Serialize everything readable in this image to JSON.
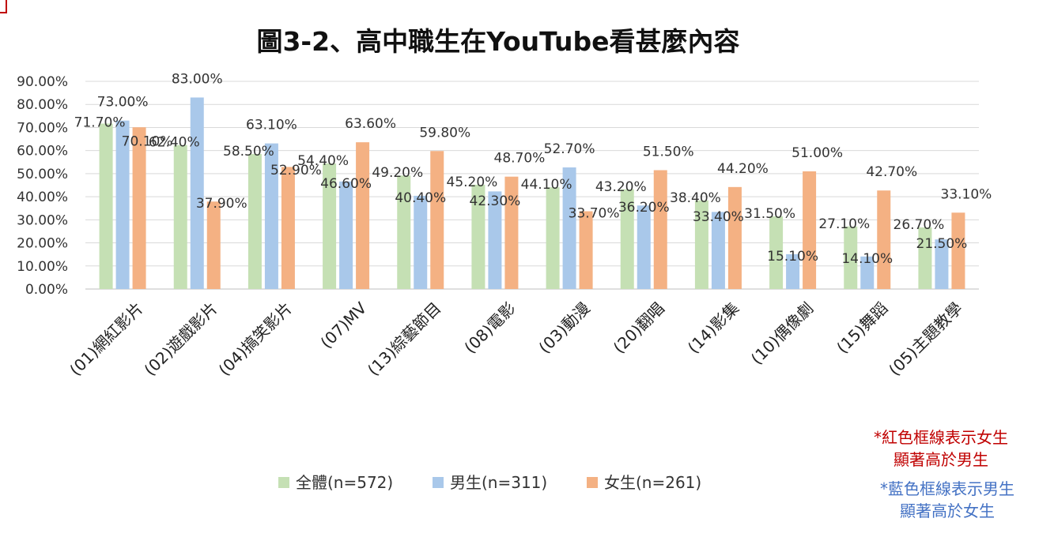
{
  "chart_data": {
    "type": "bar",
    "title": "圖3-2、高中職生在YouTube看甚麼內容",
    "categories": [
      "(01)網紅影片",
      "(02)遊戲影片",
      "(04)搞笑影片",
      "(07)MV",
      "(13)綜藝節目",
      "(08)電影",
      "(03)動漫",
      "(20)翻唱",
      "(14)影集",
      "(10)偶像劇",
      "(15)舞蹈",
      "(05)主題教學"
    ],
    "category_frames": [
      "none",
      "blue",
      "blue",
      "red",
      "red",
      "none",
      "blue",
      "red",
      "red",
      "red",
      "red",
      "red"
    ],
    "series": [
      {
        "name": "全體(n=572)",
        "color": "#c5e0b4",
        "values": [
          71.7,
          62.4,
          58.5,
          54.4,
          49.2,
          45.2,
          44.1,
          43.2,
          38.4,
          31.5,
          27.1,
          26.7
        ],
        "labels": [
          "71.70%",
          "62.40%",
          "58.50%",
          "54.40%",
          "49.20%",
          "45.20%",
          "44.10%",
          "43.20%",
          "38.40%",
          "31.50%",
          "27.10%",
          "26.70%"
        ]
      },
      {
        "name": "男生(n=311)",
        "color": "#a9c8ea",
        "values": [
          73.0,
          83.0,
          63.1,
          46.6,
          40.4,
          42.3,
          52.7,
          36.2,
          33.4,
          15.1,
          14.1,
          21.5
        ],
        "labels": [
          "73.00%",
          "83.00%",
          "63.10%",
          "46.60%",
          "40.40%",
          "42.30%",
          "52.70%",
          "36.20%",
          "33.40%",
          "15.10%",
          "14.10%",
          "21.50%"
        ]
      },
      {
        "name": "女生(n=261)",
        "color": "#f4b183",
        "values": [
          70.1,
          37.9,
          52.9,
          63.6,
          59.8,
          48.7,
          33.7,
          51.5,
          44.2,
          51.0,
          42.7,
          33.1
        ],
        "labels": [
          "70.10%",
          "37.90%",
          "52.90%",
          "63.60%",
          "59.80%",
          "48.70%",
          "33.70%",
          "51.50%",
          "44.20%",
          "51.00%",
          "42.70%",
          "33.10%"
        ]
      }
    ],
    "y_ticks": [
      "0.00%",
      "10.00%",
      "20.00%",
      "30.00%",
      "40.00%",
      "50.00%",
      "60.00%",
      "70.00%",
      "80.00%",
      "90.00%"
    ],
    "ylim": [
      0,
      90
    ],
    "grid": true,
    "legend_position": "bottom"
  },
  "notes": {
    "red": [
      "*紅色框線表示女生",
      "顯著高於男生"
    ],
    "blue": [
      "*藍色框線表示男生",
      "顯著高於女生"
    ],
    "red_color": "#c00000",
    "blue_color": "#4472c4"
  }
}
